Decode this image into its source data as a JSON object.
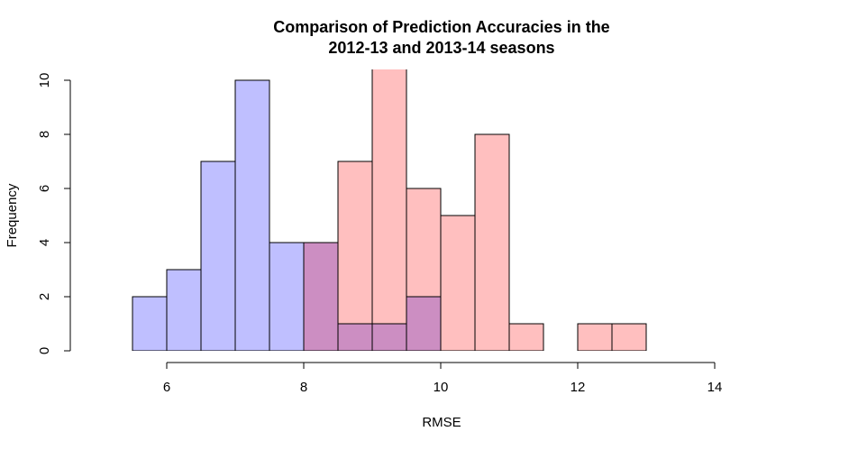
{
  "chart_data": {
    "type": "bar",
    "title_lines": [
      "Comparison of Prediction Accuracies in the",
      "2012-13 and 2013-14 seasons"
    ],
    "xlabel": "RMSE",
    "ylabel": "Frequency",
    "xlim": [
      4.5,
      14.5
    ],
    "ylim": [
      0,
      10
    ],
    "x_ticks": [
      6,
      8,
      10,
      12,
      14
    ],
    "x_tick_labels": [
      "6",
      "8",
      "10",
      "12",
      "14"
    ],
    "y_ticks": [
      0,
      2,
      4,
      6,
      8,
      10
    ],
    "y_tick_labels": [
      "0",
      "2",
      "4",
      "6",
      "8",
      "10"
    ],
    "grid": false,
    "overlap_color": "#CC8EC2",
    "series": [
      {
        "color": "#BFBFFF",
        "bins": [
          {
            "x0": 5.5,
            "x1": 6.0,
            "count": 2
          },
          {
            "x0": 6.0,
            "x1": 6.5,
            "count": 3
          },
          {
            "x0": 6.5,
            "x1": 7.0,
            "count": 7
          },
          {
            "x0": 7.0,
            "x1": 7.5,
            "count": 10
          },
          {
            "x0": 7.5,
            "x1": 8.0,
            "count": 4
          },
          {
            "x0": 8.0,
            "x1": 8.5,
            "count": 4
          },
          {
            "x0": 8.5,
            "x1": 9.0,
            "count": 1
          },
          {
            "x0": 9.0,
            "x1": 9.5,
            "count": 1
          },
          {
            "x0": 9.5,
            "x1": 10.0,
            "count": 2
          }
        ]
      },
      {
        "color": "#FFBFBF",
        "bins": [
          {
            "x0": 8.0,
            "x1": 8.5,
            "count": 4
          },
          {
            "x0": 8.5,
            "x1": 9.0,
            "count": 7
          },
          {
            "x0": 9.0,
            "x1": 9.5,
            "count": 11
          },
          {
            "x0": 9.5,
            "x1": 10.0,
            "count": 6
          },
          {
            "x0": 10.0,
            "x1": 10.5,
            "count": 5
          },
          {
            "x0": 10.5,
            "x1": 11.0,
            "count": 8
          },
          {
            "x0": 11.0,
            "x1": 11.5,
            "count": 1
          },
          {
            "x0": 11.5,
            "x1": 12.0,
            "count": 0
          },
          {
            "x0": 12.0,
            "x1": 12.5,
            "count": 1
          },
          {
            "x0": 12.5,
            "x1": 13.0,
            "count": 1
          }
        ]
      }
    ]
  }
}
